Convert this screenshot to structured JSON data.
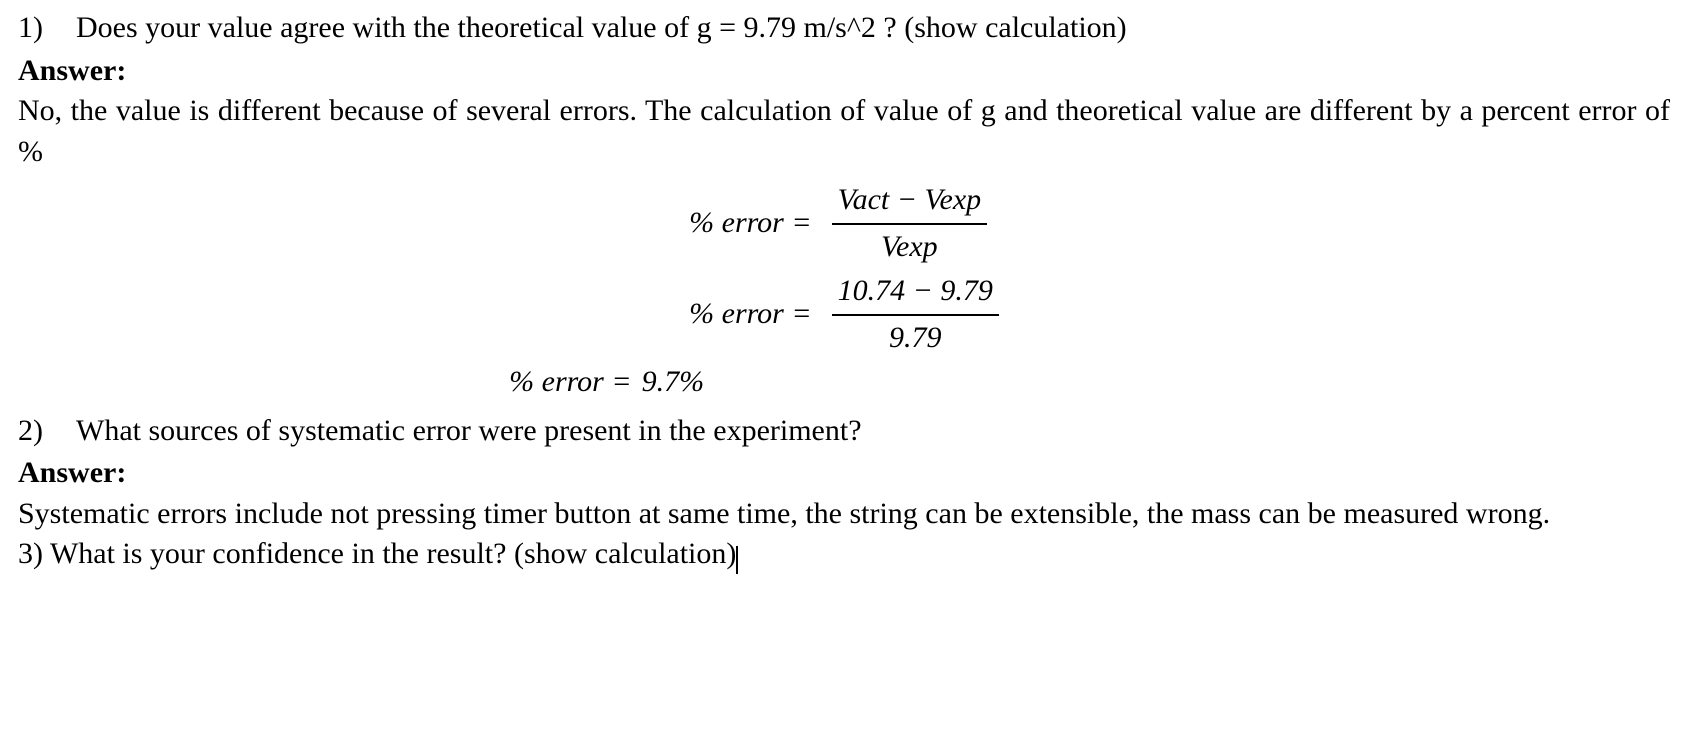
{
  "colors": {
    "text": "#000000",
    "background": "#ffffff",
    "fraction_bar": "#000000"
  },
  "typography": {
    "font_family": "Times New Roman",
    "body_fontsize_pt": 22,
    "body_weight": "normal",
    "bold_weight": "bold",
    "italic_equation": true
  },
  "q1": {
    "number": "1)",
    "question": "Does your value agree with the theoretical value of g = 9.79 m/s^2 ? (show calculation)",
    "answer_label": "Answer:",
    "answer_text": "No, the value is different because of several errors. The calculation of value of g and theoretical value are different by a percent error of %"
  },
  "equations": {
    "label": "% error",
    "equals": "=",
    "line1": {
      "numerator": "Vact − Vexp",
      "denominator": "Vexp"
    },
    "line2": {
      "numerator": "10.74 − 9.79",
      "denominator": "9.79"
    },
    "line3_result": "9.7%"
  },
  "q2": {
    "number": "2)",
    "question": "What sources of systematic error were present in the experiment?",
    "answer_label": "Answer:",
    "answer_text": "Systematic errors include not pressing timer button at same time, the string can be extensible, the mass can be measured wrong."
  },
  "q3": {
    "number_and_question": "3) What is your confidence in the result? (show calculation)"
  }
}
